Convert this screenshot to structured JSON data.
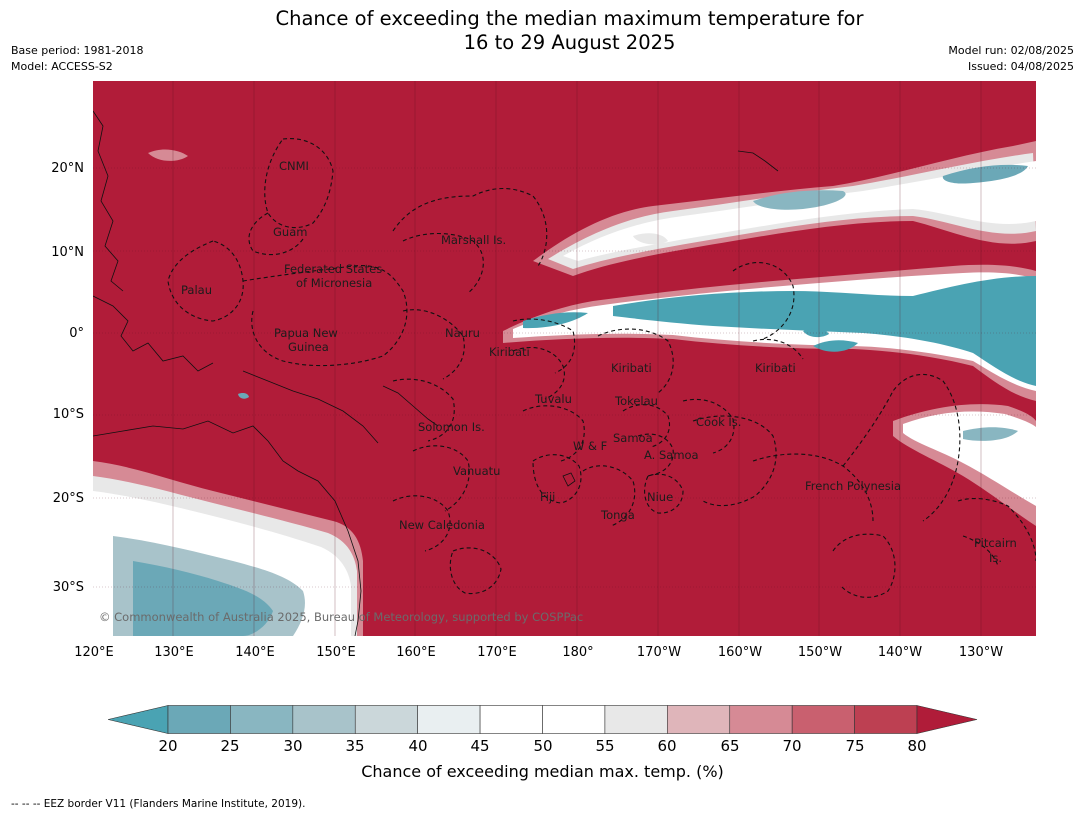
{
  "title_line1": "Chance of exceeding the median maximum temperature for",
  "title_line2": "16 to 29 August 2025",
  "meta_left": [
    "Base period: 1981-2018",
    "Model: ACCESS-S2"
  ],
  "meta_right": [
    "Model run: 02/08/2025",
    "Issued: 04/08/2025"
  ],
  "lat_labels": [
    "20°N",
    "10°N",
    "0°",
    "10°S",
    "20°S",
    "30°S"
  ],
  "lon_labels": [
    "120°E",
    "130°E",
    "140°E",
    "150°E",
    "160°E",
    "170°E",
    "180°",
    "170°W",
    "160°W",
    "150°W",
    "140°W",
    "130°W"
  ],
  "country_labels": [
    "CNMI",
    "Guam",
    "Marshall Is.",
    "Federated States",
    "of Micronesia",
    "Palau",
    "Papua New",
    "Guinea",
    "Nauru",
    "Kiribati",
    "Kiribati",
    "Kiribati",
    "Tuvalu",
    "Tokelau",
    "Cook Is.",
    "Solomon Is.",
    "W & F",
    "Samoa",
    "A. Samoa",
    "Vanuatu",
    "Fiji",
    "Niue",
    "Tonga",
    "New Caledonia",
    "French Polynesia",
    "Pitcairn",
    "Is."
  ],
  "copyright": "© Commonwealth of Australia 2025, Bureau of Meteorology, supported by COSPPac",
  "colorbar": {
    "ticks": [
      "20",
      "25",
      "30",
      "35",
      "40",
      "45",
      "50",
      "55",
      "60",
      "65",
      "70",
      "75",
      "80"
    ],
    "colors": [
      "#4aa3b3",
      "#6ba8b7",
      "#89b6c1",
      "#a8c3ca",
      "#cbd7da",
      "#e9eff1",
      "#ffffff",
      "#ffffff",
      "#e8e8e8",
      "#dfb5ba",
      "#d68a95",
      "#c9606f",
      "#bd4052",
      "#b01c39"
    ],
    "label": "Chance of exceeding median max. temp. (%)"
  },
  "footnote": "--  --  -- EEZ border V11 (Flanders Marine Institute, 2019)."
}
